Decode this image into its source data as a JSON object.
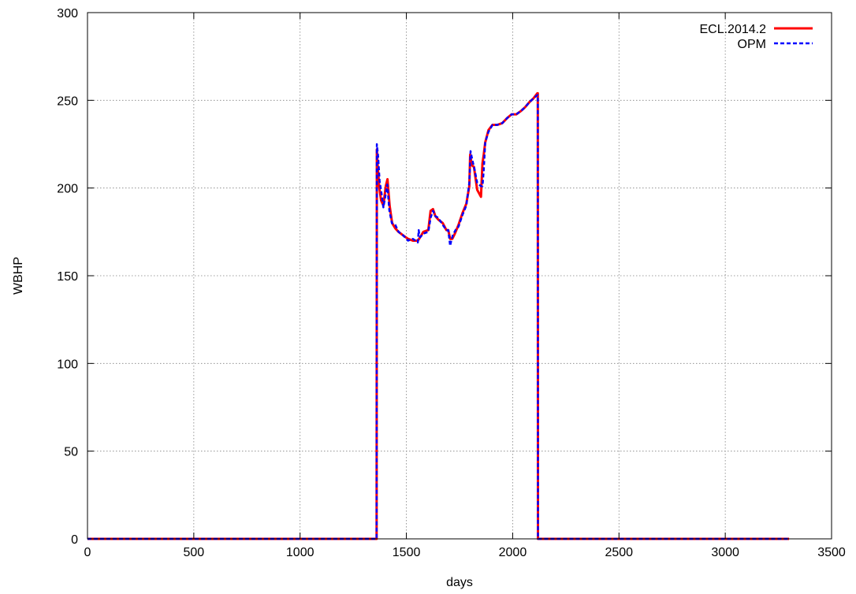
{
  "chart_data": {
    "type": "line",
    "title": "",
    "xlabel": "days",
    "ylabel": "WBHP",
    "xlim": [
      0,
      3500
    ],
    "ylim": [
      0,
      300
    ],
    "xticks": [
      0,
      500,
      1000,
      1500,
      2000,
      2500,
      3000,
      3500
    ],
    "yticks": [
      0,
      50,
      100,
      150,
      200,
      250,
      300
    ],
    "xtick_labels": [
      "0",
      "500",
      "1000",
      "1500",
      "2000",
      "2500",
      "3000",
      "3500"
    ],
    "ytick_labels": [
      "0",
      "50",
      "100",
      "150",
      "200",
      "250",
      "300"
    ],
    "grid": true,
    "legend_position": "top-right",
    "series": [
      {
        "name": "ECL.2014.2",
        "color": "#ff0000",
        "style": "solid",
        "x": [
          0,
          1360,
          1361,
          1366,
          1373,
          1381,
          1392,
          1403,
          1411,
          1421,
          1433,
          1448,
          1463,
          1485,
          1508,
          1531,
          1554,
          1565,
          1580,
          1603,
          1614,
          1625,
          1636,
          1650,
          1671,
          1688,
          1697,
          1706,
          1716,
          1728,
          1745,
          1765,
          1782,
          1796,
          1800,
          1808,
          1818,
          1833,
          1851,
          1858,
          1864,
          1871,
          1886,
          1905,
          1928,
          1951,
          1975,
          1995,
          2017,
          2040,
          2058,
          2079,
          2097,
          2116,
          2118,
          2119,
          3300
        ],
        "y": [
          0,
          0,
          222,
          211,
          200,
          193,
          190,
          201,
          205,
          190,
          180,
          177,
          175,
          173,
          171,
          170,
          170,
          172,
          175,
          176,
          187,
          188,
          184,
          182,
          180,
          176,
          176,
          171,
          171,
          174,
          179,
          186,
          191,
          201,
          219,
          213,
          212,
          199,
          195,
          214,
          219,
          226,
          233,
          236,
          236,
          237,
          240,
          242,
          242,
          244,
          246,
          249,
          251,
          254,
          254,
          0,
          0
        ]
      },
      {
        "name": "OPM",
        "color": "#0000ff",
        "style": "dashed",
        "x": [
          0,
          1360,
          1361,
          1367,
          1374,
          1383,
          1392,
          1402,
          1410,
          1420,
          1432,
          1448,
          1463,
          1485,
          1508,
          1531,
          1554,
          1558,
          1560,
          1565,
          1580,
          1603,
          1614,
          1625,
          1636,
          1650,
          1671,
          1688,
          1697,
          1706,
          1711,
          1718,
          1731,
          1745,
          1765,
          1782,
          1796,
          1802,
          1810,
          1820,
          1833,
          1851,
          1858,
          1864,
          1871,
          1886,
          1905,
          1928,
          1951,
          1975,
          1995,
          2017,
          2040,
          2058,
          2079,
          2097,
          2116,
          2118,
          2119,
          3300
        ],
        "y": [
          0,
          0,
          225,
          218,
          204,
          197,
          189,
          196,
          202,
          187,
          180,
          179,
          175,
          173,
          170,
          171,
          169,
          176,
          174,
          172,
          174,
          175,
          183,
          187,
          184,
          183,
          179,
          176,
          176,
          167,
          170,
          173,
          176,
          178,
          185,
          190,
          203,
          221,
          216,
          211,
          203,
          201,
          201,
          210,
          226,
          232,
          236,
          236,
          237,
          240,
          242,
          242,
          244,
          246,
          249,
          251,
          253,
          253,
          0,
          0
        ]
      }
    ]
  }
}
